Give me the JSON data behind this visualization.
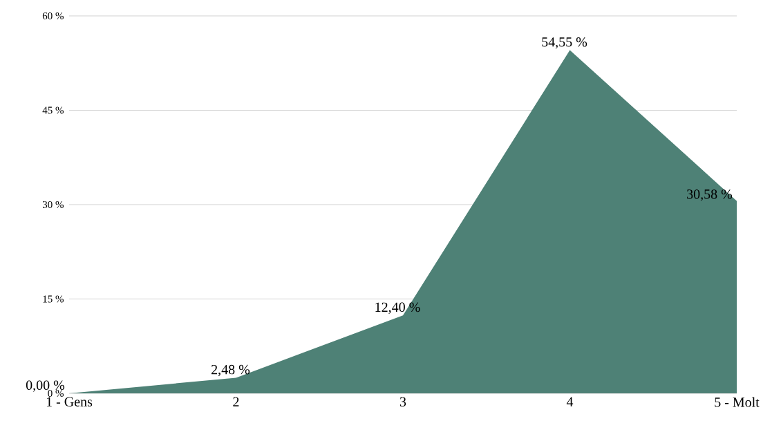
{
  "chart_data": {
    "type": "area",
    "categories": [
      "1 - Gens",
      "2",
      "3",
      "4",
      "5 - Molt"
    ],
    "values": [
      0.0,
      2.48,
      12.4,
      54.55,
      30.58
    ],
    "value_labels": [
      "0,00 %",
      "2,48 %",
      "12,40 %",
      "54,55 %",
      "30,58 %"
    ],
    "color": "#4e8176",
    "ylim": [
      0,
      60
    ],
    "yticks": [
      {
        "value": 0,
        "label": "0 %"
      },
      {
        "value": 15,
        "label": "15 %"
      },
      {
        "value": 30,
        "label": "30 %"
      },
      {
        "value": 45,
        "label": "45 %"
      },
      {
        "value": 60,
        "label": "60 %"
      }
    ],
    "grid": "y"
  }
}
